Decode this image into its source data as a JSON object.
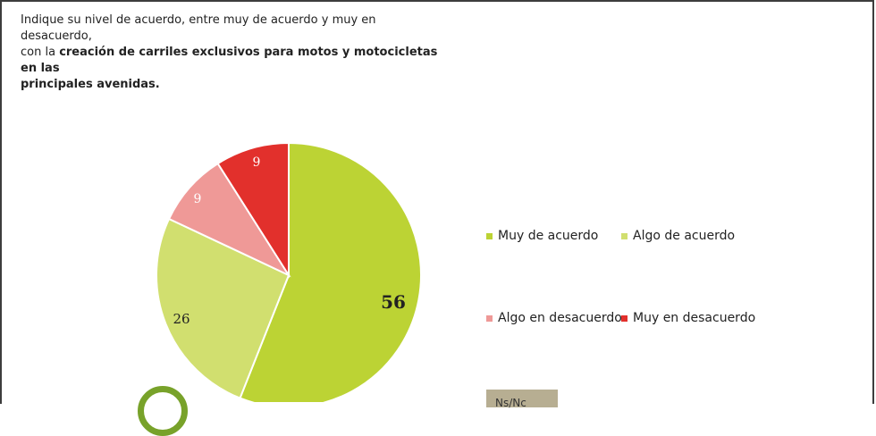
{
  "question": {
    "line1": "Indique su nivel de acuerdo, entre muy de acuerdo y muy en desacuerdo,",
    "line2_prefix": "con la ",
    "line2_bold": "creación de carriles exclusivos para motos y motocicletas en las",
    "line3_bold": "principales avenidas."
  },
  "chart_data": {
    "type": "pie",
    "categories": [
      "Muy de acuerdo",
      "Algo de acuerdo",
      "Algo en desacuerdo",
      "Muy en desacuerdo"
    ],
    "values": [
      56,
      26,
      9,
      9
    ],
    "data_labels": [
      "56",
      "26",
      "9",
      "9"
    ],
    "colors": [
      "#bcd334",
      "#d1df6f",
      "#ef9997",
      "#e2302c"
    ],
    "label_colors": [
      "#222222",
      "#222222",
      "#ffffff",
      "#ffffff"
    ],
    "slice_order": "clockwise from 12 o'clock",
    "legend_position": "right"
  },
  "legend": {
    "muy_de_acuerdo": "Muy de acuerdo",
    "algo_de_acuerdo": "Algo de acuerdo",
    "algo_en_desacuerdo": "Algo en desacuerdo",
    "muy_en_desacuerdo": "Muy en desacuerdo"
  },
  "ns_label": "Ns/Nc"
}
